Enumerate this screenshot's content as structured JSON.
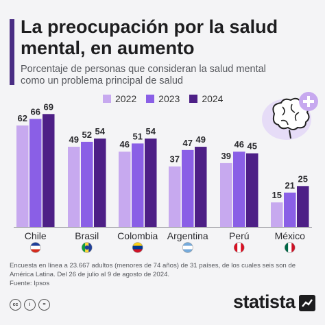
{
  "header": {
    "title_line1": "La preocupación por la salud",
    "title_line2": "mental, en aumento",
    "subtitle_line1": "Porcentaje de personas que consideran la salud mental",
    "subtitle_line2": "como un problema principal de salud"
  },
  "colors": {
    "accent": "#4a2d84",
    "series_2022": "#c7a9ef",
    "series_2023": "#8a5fe6",
    "series_2024": "#4d1f86"
  },
  "icons": [
    "brain-plus-icon",
    "creative-commons-icon",
    "statista-logo-icon"
  ],
  "chart_data": {
    "type": "bar",
    "title": "La preocupación por la salud mental, en aumento",
    "subtitle": "Porcentaje de personas que consideran la salud mental como un problema principal de salud",
    "categories": [
      "Chile",
      "Brasil",
      "Colombia",
      "Argentina",
      "Perú",
      "México"
    ],
    "series": [
      {
        "name": "2022",
        "values": [
          62,
          49,
          46,
          37,
          39,
          15
        ]
      },
      {
        "name": "2023",
        "values": [
          66,
          52,
          51,
          47,
          46,
          21
        ]
      },
      {
        "name": "2024",
        "values": [
          69,
          54,
          54,
          49,
          45,
          25
        ]
      }
    ],
    "ylim": [
      0,
      75
    ],
    "grid": false,
    "legend": "top",
    "xlabel": "",
    "ylabel": ""
  },
  "footer": {
    "note_line1": "Encuesta en línea a 23.667 adultos (menores de 74 años) de 31 países, de los cuales seis son de",
    "note_line2": "América Latina. Del 26 de julio al 9 de agosto de 2024.",
    "source": "Fuente: Ipsos",
    "brand": "statista"
  }
}
